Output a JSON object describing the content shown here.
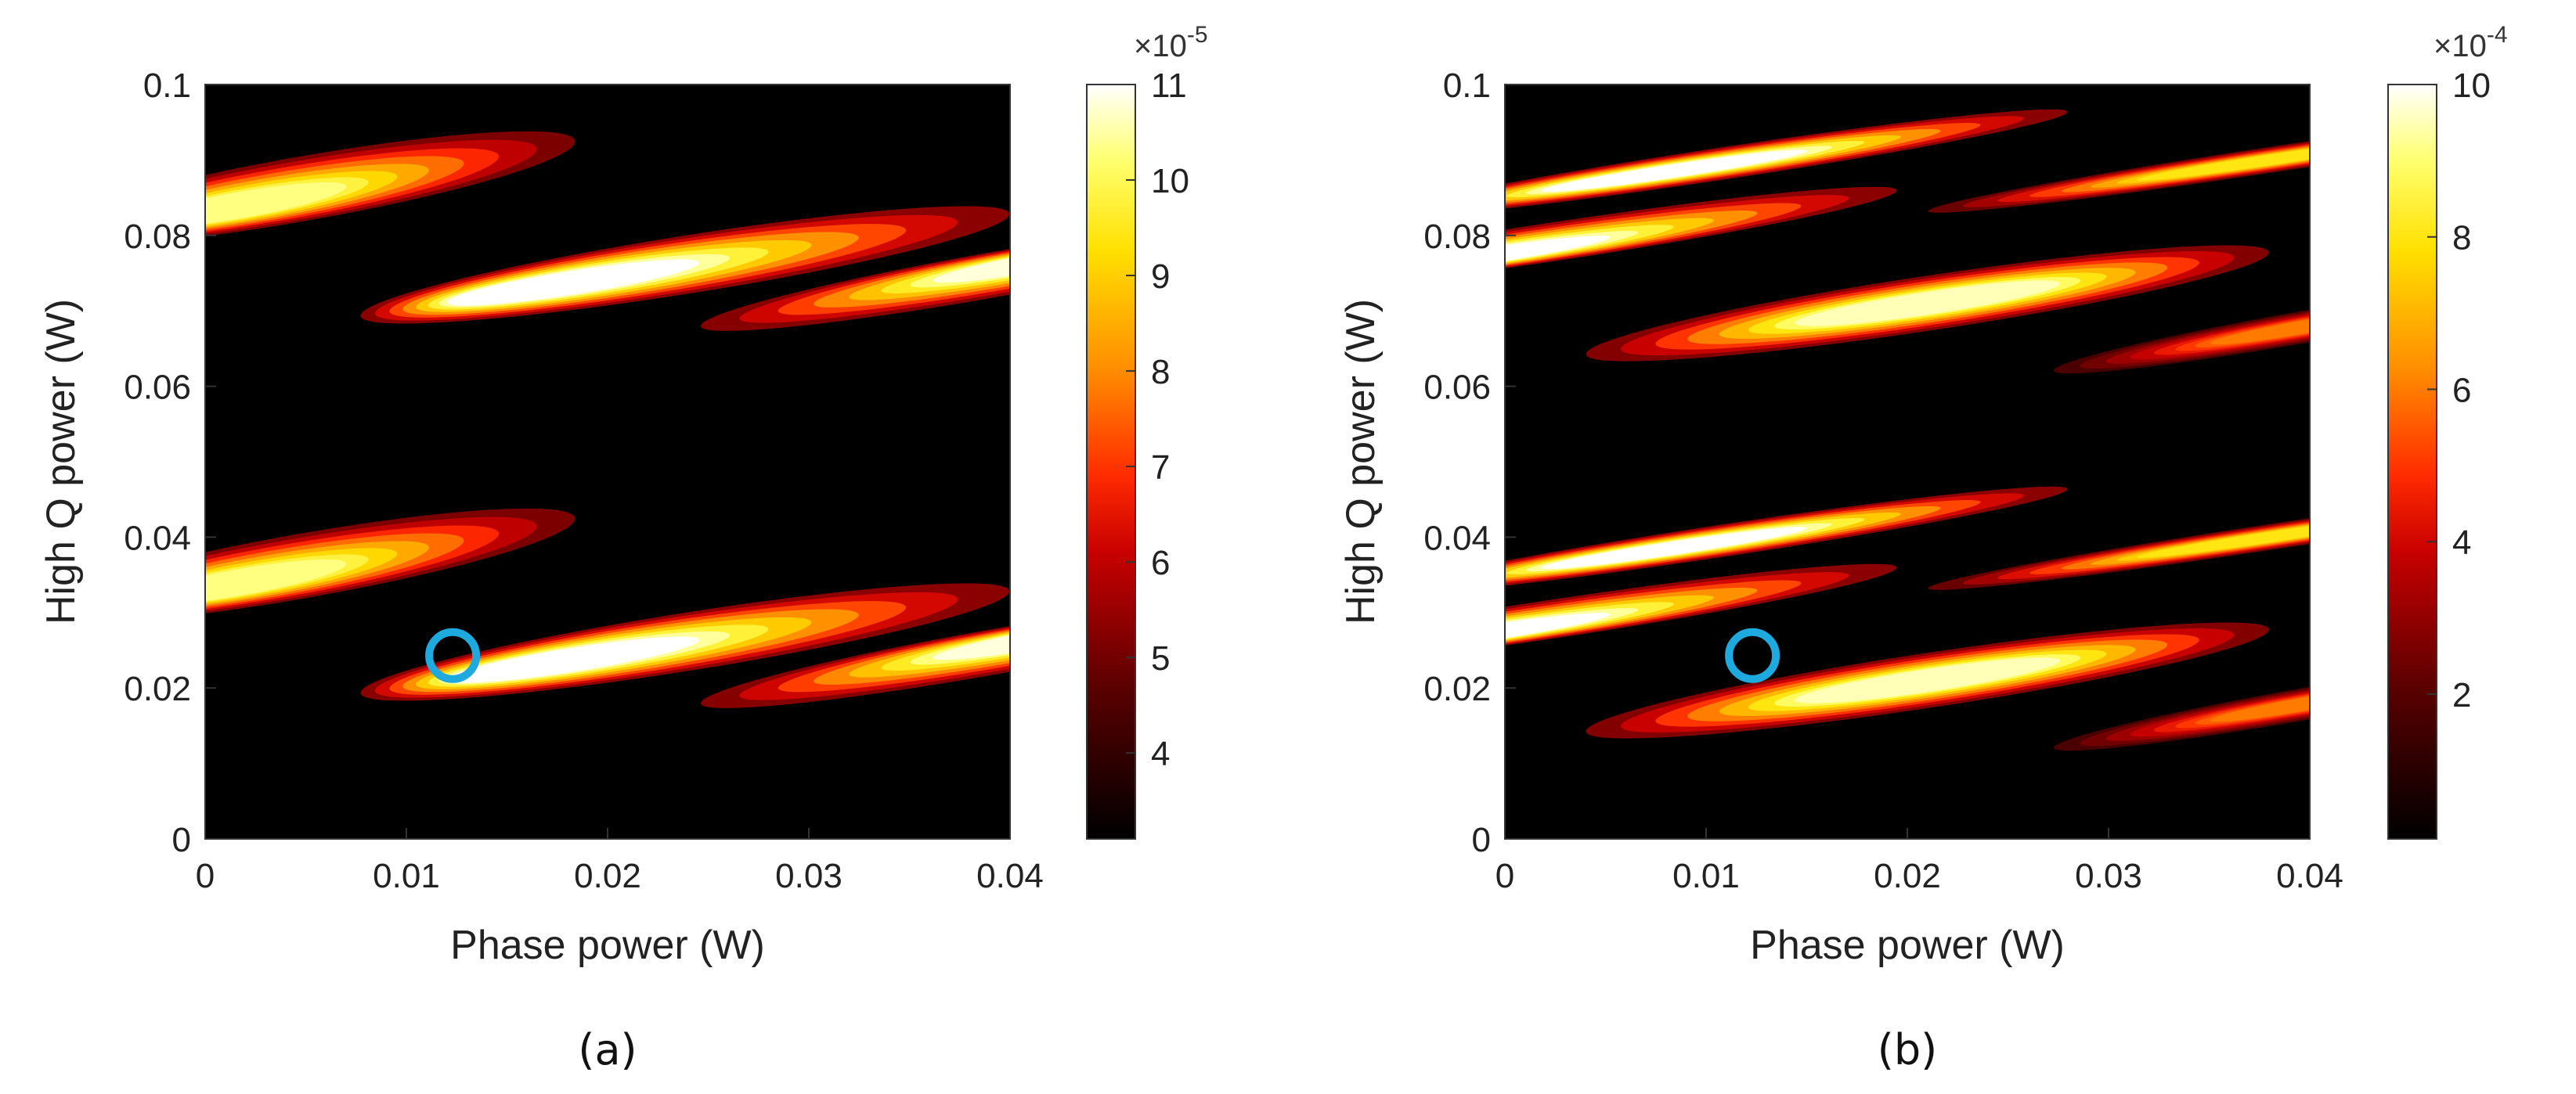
{
  "chart_data": [
    {
      "type": "heatmap",
      "panel_label": "(a)",
      "xlabel": "Phase power (W)",
      "ylabel": "High Q power (W)",
      "xlim": [
        0,
        0.04
      ],
      "ylim": [
        0,
        0.1
      ],
      "x_ticks": [
        "0",
        "0.01",
        "0.02",
        "0.03",
        "0.04"
      ],
      "y_ticks": [
        "0",
        "0.02",
        "0.04",
        "0.06",
        "0.08",
        "0.1"
      ],
      "colorbar": {
        "range": [
          3.1,
          11
        ],
        "ticks": [
          "4",
          "5",
          "6",
          "7",
          "8",
          "9",
          "10",
          "11"
        ],
        "exponent_base": "×10",
        "exponent_power": "-5"
      },
      "marker": {
        "x": 0.0123,
        "y": 0.0243,
        "shape": "circle",
        "color": "#1eaadf"
      },
      "lobes": [
        {
          "cx": 0.026,
          "cy": 0.077,
          "dxdy": [
            0.038,
            0.016
          ],
          "width": 0.009,
          "peak": 11.0,
          "px": -0.9,
          "py": 0.0,
          "cut": [
            0.027,
            0.05
          ]
        },
        {
          "cx": 0.006,
          "cy": 0.087,
          "dxdy": [
            0.032,
            0.015
          ],
          "width": 0.01,
          "peak": 10.3,
          "px": -0.6,
          "py": 0.32,
          "cut": [
            0.02,
            0.05
          ]
        },
        {
          "cx": 0.038,
          "cy": 0.074,
          "dxdy": [
            0.034,
            0.016
          ],
          "width": 0.007,
          "peak": 10.8,
          "px": 0.5,
          "py": -0.4,
          "cut": [
            0.06,
            0.05
          ]
        },
        {
          "cx": 0.026,
          "cy": 0.027,
          "dxdy": [
            0.038,
            0.016
          ],
          "width": 0.009,
          "peak": 11.0,
          "px": -0.9,
          "py": 0.0,
          "cut": [
            -0.023,
            0.05
          ]
        },
        {
          "cx": 0.006,
          "cy": 0.037,
          "dxdy": [
            0.032,
            0.015
          ],
          "width": 0.01,
          "peak": 10.3,
          "px": -0.6,
          "py": 0.32,
          "cut": [
            -0.03,
            0.05
          ]
        },
        {
          "cx": 0.038,
          "cy": 0.024,
          "dxdy": [
            0.034,
            0.016
          ],
          "width": 0.007,
          "peak": 10.8,
          "px": 0.5,
          "py": -0.4,
          "cut": [
            0.01,
            0.05
          ]
        }
      ]
    },
    {
      "type": "heatmap",
      "panel_label": "(b)",
      "xlabel": "Phase power (W)",
      "ylabel": "High Q power (W)",
      "xlim": [
        0,
        0.04
      ],
      "ylim": [
        0,
        0.1
      ],
      "x_ticks": [
        "0",
        "0.01",
        "0.02",
        "0.03",
        "0.04"
      ],
      "y_ticks": [
        "0",
        "0.02",
        "0.04",
        "0.06",
        "0.08",
        "0.1"
      ],
      "colorbar": {
        "range": [
          0.1,
          10
        ],
        "ticks": [
          "2",
          "4",
          "6",
          "8",
          "10"
        ],
        "exponent_base": "×10",
        "exponent_power": "-4"
      },
      "marker": {
        "x": 0.0123,
        "y": 0.0243,
        "shape": "circle",
        "color": "#1eaadf"
      },
      "lobes": [
        {
          "cx": 0.021,
          "cy": 0.071,
          "dxdy": [
            0.04,
            0.016
          ],
          "width": 0.0085,
          "peak": 9.5,
          "px": 0.0,
          "py": 0.0,
          "cut": [
            0.1,
            0.05
          ]
        },
        {
          "cx": 0.012,
          "cy": 0.09,
          "dxdy": [
            0.04,
            0.016
          ],
          "width": 0.005,
          "peak": 10.0,
          "px": -0.4,
          "py": 0.0,
          "cut": [
            0.031,
            0.05
          ]
        },
        {
          "cx": 0.004,
          "cy": 0.08,
          "dxdy": [
            0.04,
            0.016
          ],
          "width": 0.006,
          "peak": 10.0,
          "px": -0.6,
          "py": 0.4,
          "cut": [
            0.031,
            0.05
          ]
        },
        {
          "cx": 0.038,
          "cy": 0.09,
          "dxdy": [
            0.04,
            0.016
          ],
          "width": 0.004,
          "peak": 8.0,
          "px": 0.0,
          "py": 0.0,
          "cut": [
            0.1,
            0.05
          ]
        },
        {
          "cx": 0.04,
          "cy": 0.068,
          "dxdy": [
            0.03,
            0.014
          ],
          "width": 0.005,
          "peak": 6.0,
          "px": 0.0,
          "py": 0.0,
          "cut": [
            0.1,
            0.05
          ]
        },
        {
          "cx": 0.021,
          "cy": 0.021,
          "dxdy": [
            0.04,
            0.016
          ],
          "width": 0.0085,
          "peak": 9.5,
          "px": 0.0,
          "py": 0.0,
          "cut": [
            0.1,
            0.05
          ]
        },
        {
          "cx": 0.012,
          "cy": 0.04,
          "dxdy": [
            0.04,
            0.016
          ],
          "width": 0.005,
          "peak": 10.0,
          "px": -0.4,
          "py": 0.0,
          "cut": [
            -0.019,
            0.05
          ]
        },
        {
          "cx": 0.004,
          "cy": 0.03,
          "dxdy": [
            0.04,
            0.016
          ],
          "width": 0.006,
          "peak": 10.0,
          "px": -0.6,
          "py": 0.4,
          "cut": [
            -0.019,
            0.05
          ]
        },
        {
          "cx": 0.038,
          "cy": 0.04,
          "dxdy": [
            0.04,
            0.016
          ],
          "width": 0.004,
          "peak": 8.0,
          "px": 0.0,
          "py": 0.0,
          "cut": [
            0.1,
            0.05
          ]
        },
        {
          "cx": 0.04,
          "cy": 0.018,
          "dxdy": [
            0.03,
            0.014
          ],
          "width": 0.005,
          "peak": 6.0,
          "px": 0.0,
          "py": 0.0,
          "cut": [
            0.1,
            0.05
          ]
        }
      ]
    }
  ]
}
